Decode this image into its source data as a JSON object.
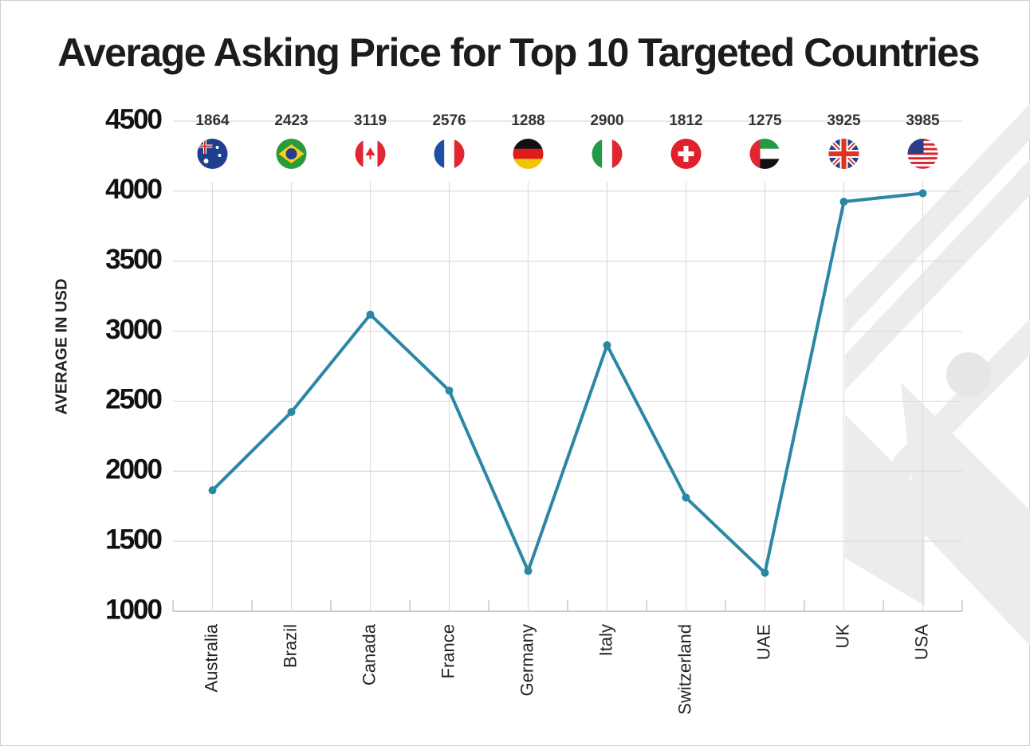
{
  "chart_data": {
    "type": "line",
    "title": "Average Asking Price for Top 10 Targeted Countries",
    "y_label": "AVERAGE IN USD",
    "categories": [
      "Australia",
      "Brazil",
      "Canada",
      "France",
      "Germany",
      "Italy",
      "Switzerland",
      "UAE",
      "UK",
      "USA"
    ],
    "values": [
      1864,
      2423,
      3119,
      2576,
      1288,
      2900,
      1812,
      1275,
      3925,
      3985
    ],
    "color": "#2b87a4",
    "ylim": [
      1000,
      4500
    ],
    "yticks": [
      1000,
      1500,
      2000,
      2500,
      3000,
      3500,
      4000,
      4500
    ],
    "grid": true
  }
}
